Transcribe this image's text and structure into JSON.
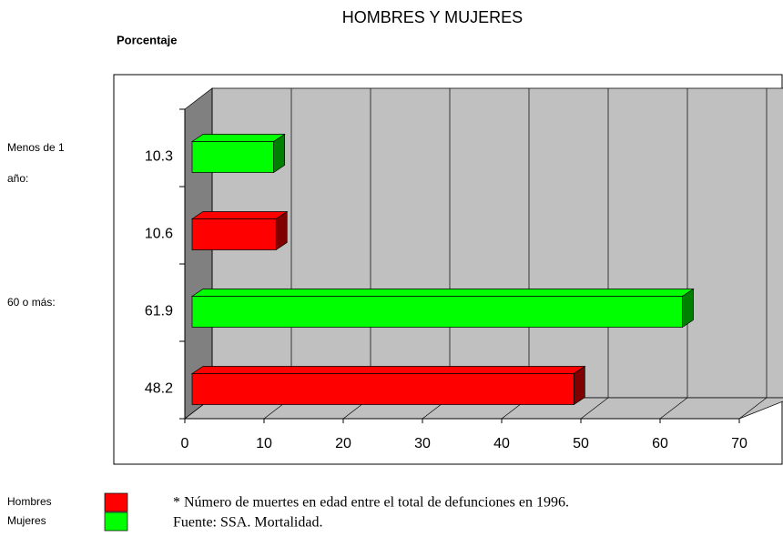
{
  "chart_data": {
    "type": "bar",
    "orientation": "horizontal",
    "title": "HOMBRES Y MUJERES",
    "y_label": "Porcentaje",
    "categories": [
      "Menos de 1 año:",
      "60 o más:"
    ],
    "series": [
      {
        "name": "Hombres",
        "color": "#ff0000",
        "values": [
          10.6,
          48.2
        ]
      },
      {
        "name": "Mujeres",
        "color": "#00ff00",
        "values": [
          10.3,
          61.9
        ]
      }
    ],
    "xlim": [
      0,
      70
    ],
    "xticks": [
      0,
      10,
      20,
      30,
      40,
      50,
      60,
      70
    ],
    "grid": true,
    "notes": [
      "* Número de muertes en edad entre el total de defunciones en 1996.",
      "Fuente: SSA. Mortalidad."
    ]
  }
}
